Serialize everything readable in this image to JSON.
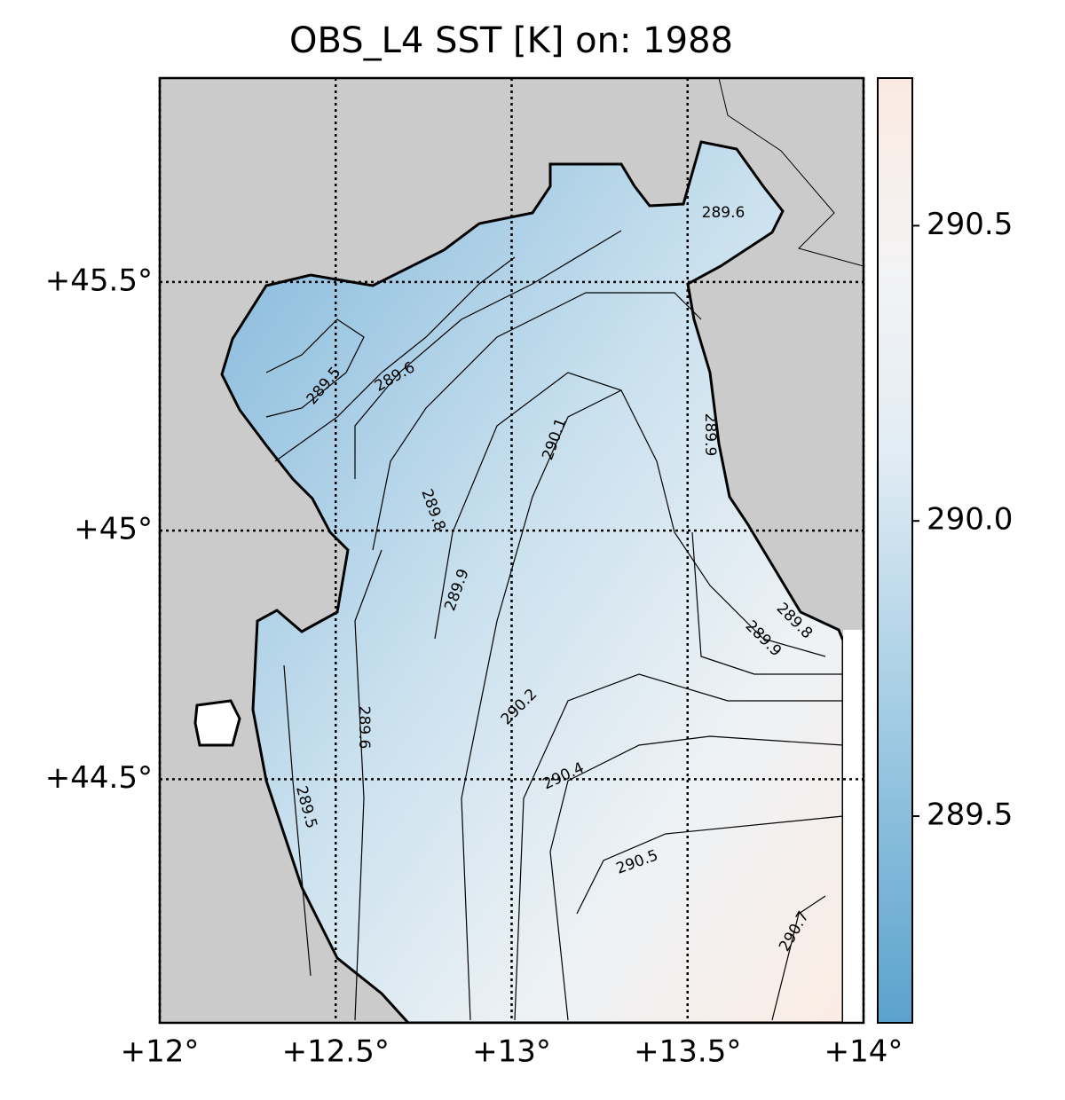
{
  "chart_data": {
    "type": "map",
    "title": "OBS_L4 SST [K] on: 1988",
    "xlim": [
      12,
      14
    ],
    "ylim": [
      44.01,
      45.91
    ],
    "xticks": [
      {
        "value": 12,
        "label": "+12°"
      },
      {
        "value": 12.5,
        "label": "+12.5°"
      },
      {
        "value": 13,
        "label": "+13°"
      },
      {
        "value": 13.5,
        "label": "+13.5°"
      },
      {
        "value": 14,
        "label": "+14°"
      }
    ],
    "yticks": [
      {
        "value": 44.5,
        "label": "+44.5°"
      },
      {
        "value": 45,
        "label": "+45°"
      },
      {
        "value": 45.5,
        "label": "+45.5°"
      }
    ],
    "grid": true,
    "colorbar": {
      "lim": [
        289.15,
        290.75
      ],
      "ticks": [
        289.5,
        {
          "value": 290,
          "label": "290.0"
        },
        290.5
      ]
    },
    "contour_labels": [
      289.6,
      289.5,
      289.6,
      290.1,
      289.8,
      289.9,
      289.9,
      289.8,
      289.9,
      289.6,
      290.2,
      290.4,
      289.5,
      290.5,
      290.7
    ]
  }
}
